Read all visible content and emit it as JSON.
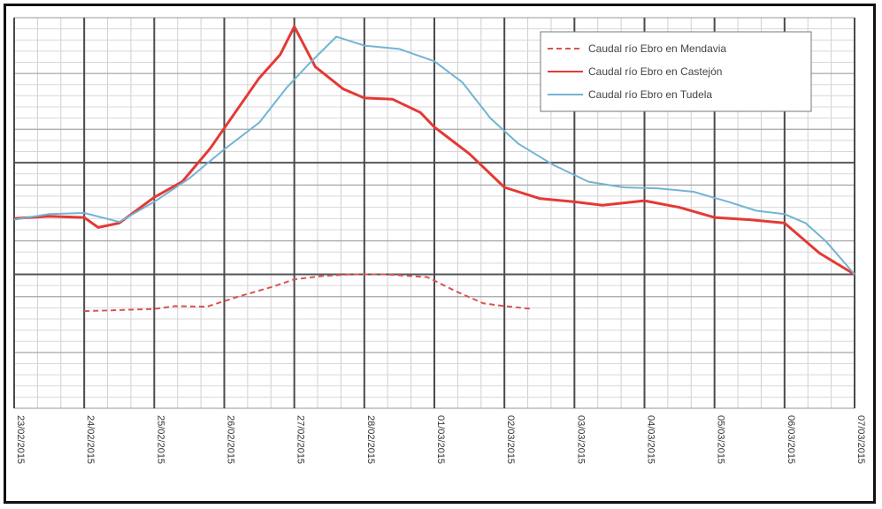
{
  "chart_data": {
    "type": "line",
    "title": "",
    "xlabel": "",
    "ylabel": "",
    "grid": true,
    "legend_position": "top-right",
    "x_ticks": [
      "23/02/2015",
      "24/02/2015",
      "25/02/2015",
      "26/02/2015",
      "27/02/2015",
      "28/02/2015",
      "01/03/2015",
      "02/03/2015",
      "03/03/2015",
      "04/03/2015",
      "05/03/2015",
      "06/03/2015",
      "07/03/2015"
    ],
    "series": [
      {
        "name": "Caudal río Ebro en Mendavia",
        "color": "#d9534f",
        "dash": true,
        "points": [
          [
            1.0,
            -0.13
          ],
          [
            1.5,
            -0.12
          ],
          [
            2.0,
            -0.11
          ],
          [
            2.3,
            -0.085
          ],
          [
            2.75,
            -0.09
          ],
          [
            3.2,
            0.0
          ],
          [
            3.7,
            0.09
          ],
          [
            4.0,
            0.155
          ],
          [
            4.4,
            0.185
          ],
          [
            4.8,
            0.2
          ],
          [
            5.3,
            0.2
          ],
          [
            5.9,
            0.175
          ],
          [
            6.3,
            0.05
          ],
          [
            6.7,
            -0.06
          ],
          [
            7.0,
            -0.085
          ],
          [
            7.4,
            -0.11
          ]
        ]
      },
      {
        "name": "Caudal río Ebro en Castejón",
        "color": "#e53935",
        "dash": false,
        "points": [
          [
            0.0,
            0.7
          ],
          [
            0.5,
            0.72
          ],
          [
            1.0,
            0.71
          ],
          [
            1.2,
            0.62
          ],
          [
            1.5,
            0.66
          ],
          [
            2.0,
            0.89
          ],
          [
            2.4,
            1.03
          ],
          [
            2.8,
            1.33
          ],
          [
            3.2,
            1.69
          ],
          [
            3.5,
            1.96
          ],
          [
            3.8,
            2.17
          ],
          [
            4.0,
            2.42
          ],
          [
            4.3,
            2.06
          ],
          [
            4.7,
            1.86
          ],
          [
            5.0,
            1.78
          ],
          [
            5.4,
            1.77
          ],
          [
            5.8,
            1.65
          ],
          [
            6.0,
            1.52
          ],
          [
            6.5,
            1.28
          ],
          [
            7.0,
            0.98
          ],
          [
            7.5,
            0.88
          ],
          [
            8.0,
            0.85
          ],
          [
            8.4,
            0.82
          ],
          [
            9.0,
            0.86
          ],
          [
            9.5,
            0.8
          ],
          [
            10.0,
            0.71
          ],
          [
            10.5,
            0.69
          ],
          [
            11.0,
            0.66
          ],
          [
            11.5,
            0.39
          ],
          [
            12.0,
            0.2
          ]
        ]
      },
      {
        "name": "Caudal río Ebro en Tudela",
        "color": "#72b4d4",
        "dash": false,
        "points": [
          [
            0.0,
            0.69
          ],
          [
            0.5,
            0.74
          ],
          [
            1.0,
            0.75
          ],
          [
            1.5,
            0.67
          ],
          [
            2.0,
            0.85
          ],
          [
            2.5,
            1.06
          ],
          [
            3.0,
            1.32
          ],
          [
            3.5,
            1.56
          ],
          [
            3.9,
            1.88
          ],
          [
            4.2,
            2.08
          ],
          [
            4.6,
            2.33
          ],
          [
            5.0,
            2.25
          ],
          [
            5.5,
            2.22
          ],
          [
            6.0,
            2.11
          ],
          [
            6.4,
            1.92
          ],
          [
            6.8,
            1.6
          ],
          [
            7.2,
            1.37
          ],
          [
            7.7,
            1.18
          ],
          [
            8.2,
            1.03
          ],
          [
            8.7,
            0.98
          ],
          [
            9.2,
            0.97
          ],
          [
            9.7,
            0.94
          ],
          [
            10.2,
            0.85
          ],
          [
            10.6,
            0.77
          ],
          [
            11.0,
            0.74
          ],
          [
            11.3,
            0.66
          ],
          [
            11.6,
            0.49
          ],
          [
            12.0,
            0.2
          ]
        ]
      }
    ]
  }
}
